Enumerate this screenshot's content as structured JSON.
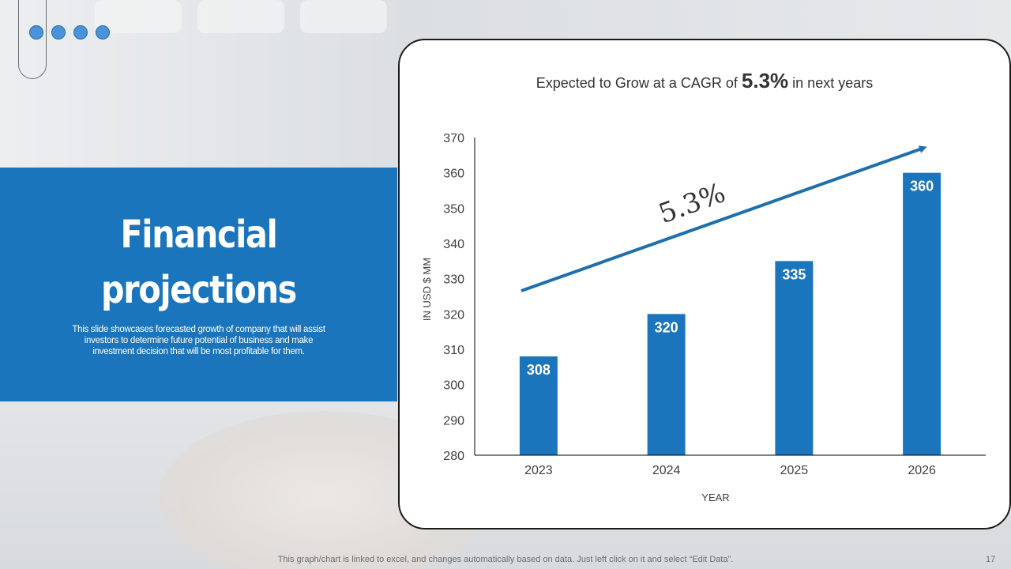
{
  "slide": {
    "title_line1": "Financial",
    "title_line2": "projections",
    "description": "This slide showcases forecasted growth of company that will assist investors to determine future potential of business and make investment decision that will be most profitable for them.",
    "footer_note": "This graph/chart is linked to excel,  and changes automatically based on data. Just left click on it and select “Edit Data”.",
    "page_number": "17"
  },
  "chart_data": {
    "type": "bar",
    "title_prefix": "Expected to Grow at a CAGR of",
    "title_highlight": "5.3%",
    "title_suffix": "in next years",
    "xlabel": "YEAR",
    "ylabel": "IN USD $ MM",
    "categories": [
      "2023",
      "2024",
      "2025",
      "2026"
    ],
    "values": [
      308,
      320,
      335,
      360
    ],
    "data_labels": [
      "308",
      "320",
      "335",
      "360"
    ],
    "ylim": [
      280,
      370
    ],
    "yticks": [
      280,
      290,
      300,
      310,
      320,
      330,
      340,
      350,
      360,
      370
    ],
    "ytick_labels": [
      "280",
      "290",
      "300",
      "310",
      "320",
      "330",
      "340",
      "350",
      "360",
      "370"
    ],
    "annotation": "5.3%",
    "grid": false,
    "legend": "none",
    "bar_color": "#1b75bc",
    "arrow_color": "#1f6fad"
  }
}
